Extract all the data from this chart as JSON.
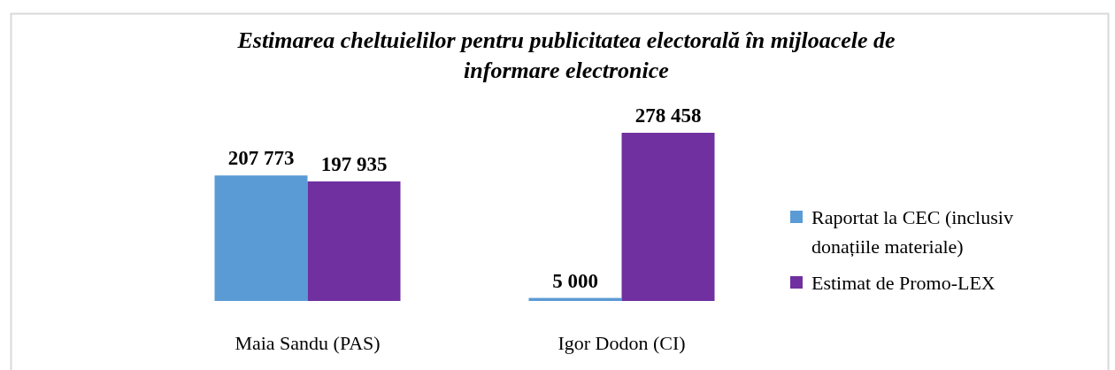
{
  "chart_data": {
    "type": "bar",
    "title": "Estimarea cheltuielilor pentru publicitatea electorală în mijloacele de informare electronice",
    "categories": [
      "Maia Sandu (PAS)",
      "Igor Dodon (CI)"
    ],
    "series": [
      {
        "name": "Raportat la CEC (inclusiv donațiile materiale)",
        "color": "#5b9bd5",
        "values": [
          207773,
          5000
        ],
        "value_labels": [
          "207 773",
          "5 000"
        ]
      },
      {
        "name": "Estimat de Promo-LEX",
        "color": "#7030a0",
        "values": [
          197935,
          278458
        ],
        "value_labels": [
          "197 935",
          "278 458"
        ]
      }
    ],
    "legend": "right"
  }
}
